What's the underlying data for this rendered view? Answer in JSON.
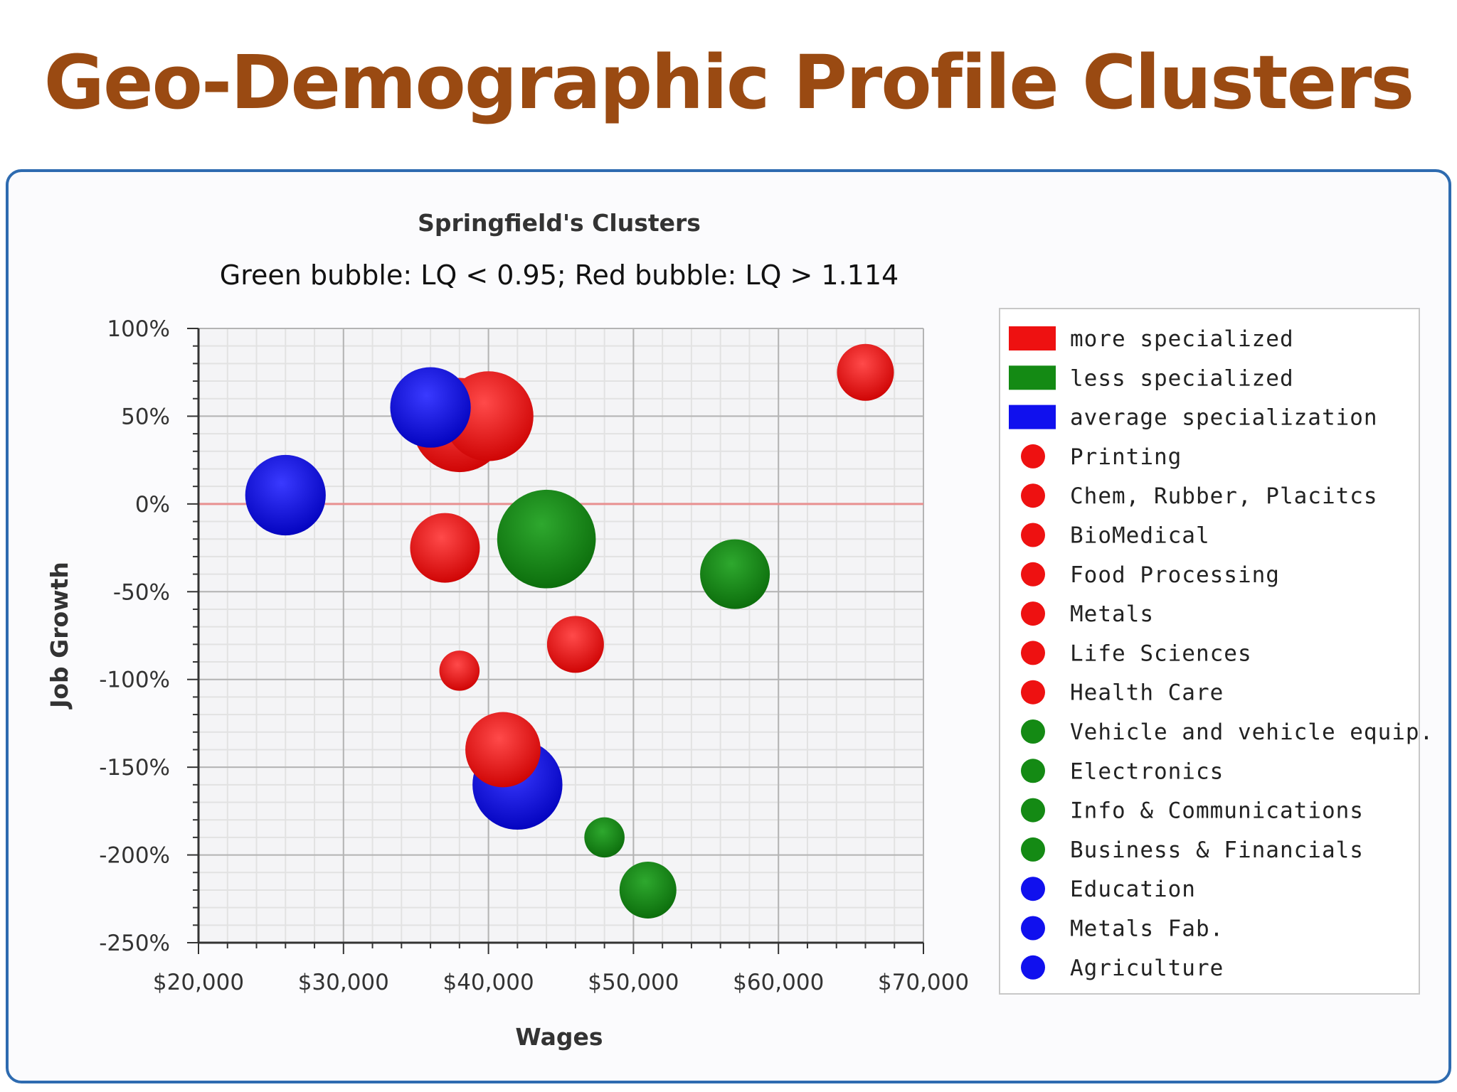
{
  "slide": {
    "title": "Geo-Demographic Profile Clusters"
  },
  "colors": {
    "red": "#ee1111",
    "green": "#148a14",
    "blue": "#1010ee",
    "title": "#9a4a12",
    "frame": "#2e6bb0",
    "zero_line": "#e89090"
  },
  "chart_data": {
    "type": "bubble",
    "title": "Springfield's Clusters",
    "subtitle": "Green bubble: LQ < 0.95; Red bubble: LQ > 1.114",
    "xlabel": "Wages",
    "ylabel": "Job Growth",
    "xlim": [
      20000,
      70000
    ],
    "ylim": [
      -250,
      100
    ],
    "x_ticks": [
      20000,
      30000,
      40000,
      50000,
      60000,
      70000
    ],
    "x_tick_labels": [
      "$20,000",
      "$30,000",
      "$40,000",
      "$50,000",
      "$60,000",
      "$70,000"
    ],
    "y_ticks": [
      100,
      50,
      0,
      -50,
      -100,
      -150,
      -200,
      -250
    ],
    "y_tick_labels": [
      "100%",
      "50%",
      "0%",
      "-50%",
      "-100%",
      "-150%",
      "-200%",
      "-250%"
    ],
    "grid": true,
    "legend_position": "right",
    "legend_groups": [
      {
        "name": "more specialized",
        "color": "red"
      },
      {
        "name": "less specialized",
        "color": "green"
      },
      {
        "name": "average specialization",
        "color": "blue"
      }
    ],
    "series": [
      {
        "name": "Printing",
        "color": "red",
        "x": 66000,
        "y": 75,
        "size": 4
      },
      {
        "name": "Chem, Rubber, Placitcs",
        "color": "red",
        "x": 40000,
        "y": 50,
        "size": 10
      },
      {
        "name": "BioMedical",
        "color": "red",
        "x": 38000,
        "y": 45,
        "size": 11
      },
      {
        "name": "Food Processing",
        "color": "red",
        "x": 37000,
        "y": -25,
        "size": 6
      },
      {
        "name": "Metals",
        "color": "red",
        "x": 46000,
        "y": -80,
        "size": 4
      },
      {
        "name": "Life Sciences",
        "color": "red",
        "x": 38000,
        "y": -95,
        "size": 2
      },
      {
        "name": "Health Care",
        "color": "red",
        "x": 41000,
        "y": -140,
        "size": 7
      },
      {
        "name": "Vehicle and vehicle equip.",
        "color": "green",
        "x": 44000,
        "y": -20,
        "size": 12
      },
      {
        "name": "Electronics",
        "color": "green",
        "x": 57000,
        "y": -40,
        "size": 6
      },
      {
        "name": "Info & Communications",
        "color": "green",
        "x": 48000,
        "y": -190,
        "size": 2
      },
      {
        "name": "Business & Financials",
        "color": "green",
        "x": 51000,
        "y": -220,
        "size": 4
      },
      {
        "name": "Education",
        "color": "blue",
        "x": 26000,
        "y": 5,
        "size": 8
      },
      {
        "name": "Metals Fab.",
        "color": "blue",
        "x": 36000,
        "y": 55,
        "size": 8
      },
      {
        "name": "Agriculture",
        "color": "blue",
        "x": 42000,
        "y": -160,
        "size": 10
      }
    ]
  }
}
